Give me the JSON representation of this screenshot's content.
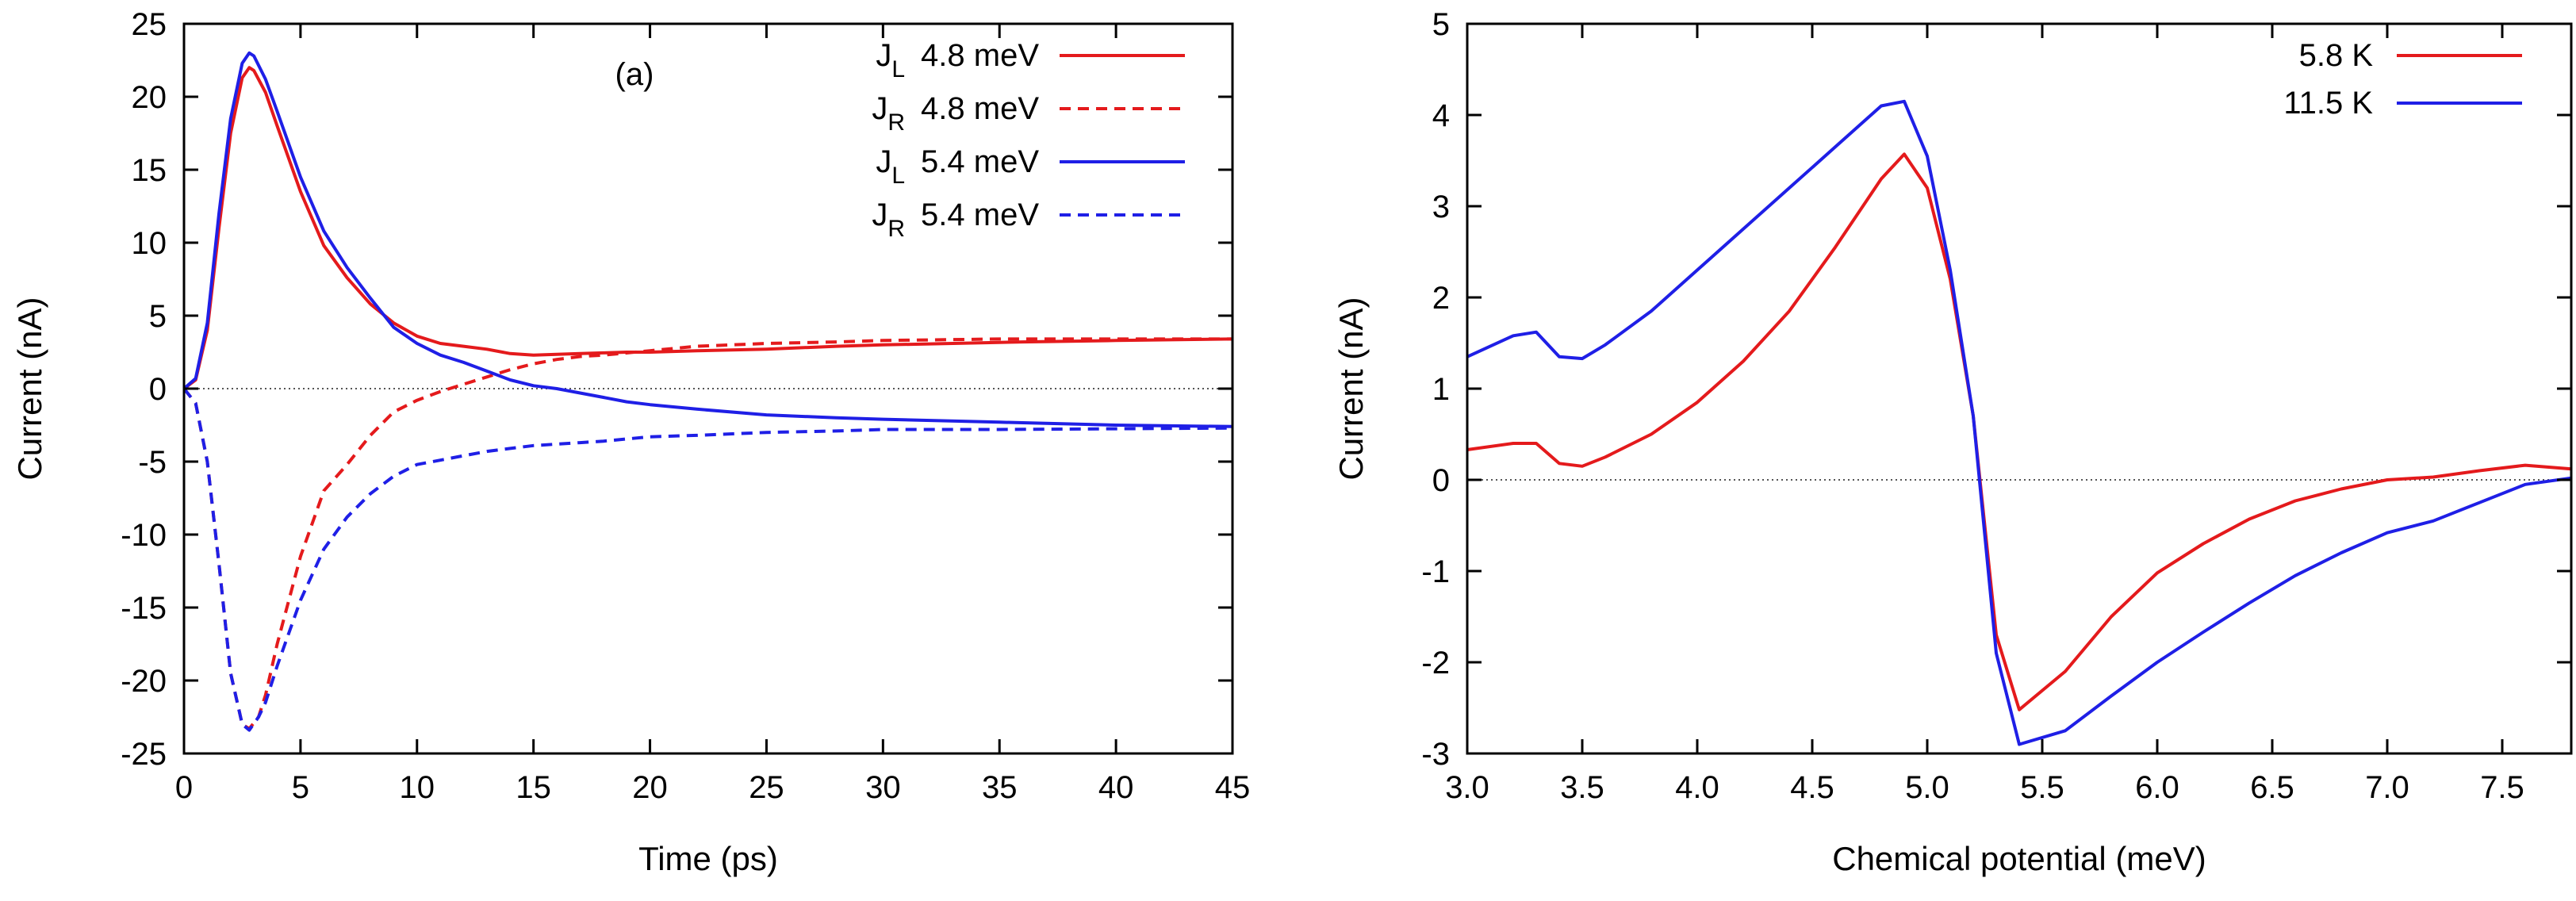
{
  "chart_data": [
    {
      "type": "line",
      "xlabel": "Time (ps)",
      "ylabel": "Current (nA)",
      "xlim": [
        0,
        45
      ],
      "ylim": [
        -25,
        25
      ],
      "xticks": [
        0,
        5,
        10,
        15,
        20,
        25,
        30,
        35,
        40,
        45
      ],
      "yticks": [
        -25,
        -20,
        -15,
        -10,
        -5,
        0,
        5,
        10,
        15,
        20,
        25
      ],
      "annotation": "(a)",
      "zero_line": true,
      "legend_position": "top-right",
      "series": [
        {
          "legend_main": "J",
          "legend_sub": "L",
          "legend_text": "4.8 meV",
          "color": "#e41a1c",
          "dash": "solid",
          "points": [
            [
              0,
              0
            ],
            [
              0.5,
              0.6
            ],
            [
              1,
              4
            ],
            [
              1.5,
              11
            ],
            [
              2,
              17.5
            ],
            [
              2.5,
              21.3
            ],
            [
              2.8,
              22
            ],
            [
              3,
              21.8
            ],
            [
              3.5,
              20.3
            ],
            [
              4,
              18
            ],
            [
              5,
              13.5
            ],
            [
              6,
              9.8
            ],
            [
              7,
              7.6
            ],
            [
              8,
              5.8
            ],
            [
              9,
              4.5
            ],
            [
              10,
              3.6
            ],
            [
              11,
              3.1
            ],
            [
              12,
              2.9
            ],
            [
              13,
              2.7
            ],
            [
              14,
              2.4
            ],
            [
              15,
              2.3
            ],
            [
              16,
              2.35
            ],
            [
              17,
              2.4
            ],
            [
              18,
              2.45
            ],
            [
              19,
              2.5
            ],
            [
              20,
              2.5
            ],
            [
              22,
              2.6
            ],
            [
              25,
              2.7
            ],
            [
              28,
              2.9
            ],
            [
              30,
              3.0
            ],
            [
              33,
              3.1
            ],
            [
              36,
              3.2
            ],
            [
              40,
              3.3
            ],
            [
              45,
              3.4
            ]
          ]
        },
        {
          "legend_main": "J",
          "legend_sub": "R",
          "legend_text": "4.8 meV",
          "color": "#e41a1c",
          "dash": "dashed",
          "points": [
            [
              0,
              0
            ],
            [
              0.5,
              -1
            ],
            [
              1,
              -5
            ],
            [
              1.5,
              -12
            ],
            [
              2,
              -19.5
            ],
            [
              2.5,
              -23
            ],
            [
              2.8,
              -23.3
            ],
            [
              3.2,
              -22.5
            ],
            [
              3.5,
              -21
            ],
            [
              4,
              -17.5
            ],
            [
              5,
              -11.5
            ],
            [
              6,
              -7
            ],
            [
              7,
              -5.2
            ],
            [
              8,
              -3.2
            ],
            [
              9,
              -1.6
            ],
            [
              10,
              -0.8
            ],
            [
              11,
              -0.2
            ],
            [
              12,
              0.3
            ],
            [
              13,
              0.8
            ],
            [
              14,
              1.3
            ],
            [
              15,
              1.7
            ],
            [
              16,
              2.0
            ],
            [
              17,
              2.2
            ],
            [
              18,
              2.3
            ],
            [
              20,
              2.6
            ],
            [
              22,
              2.9
            ],
            [
              25,
              3.1
            ],
            [
              28,
              3.2
            ],
            [
              30,
              3.3
            ],
            [
              35,
              3.4
            ],
            [
              40,
              3.4
            ],
            [
              45,
              3.4
            ]
          ]
        },
        {
          "legend_main": "J",
          "legend_sub": "L",
          "legend_text": "5.4 meV",
          "color": "#1f1fe6",
          "dash": "solid",
          "points": [
            [
              0,
              0
            ],
            [
              0.5,
              0.7
            ],
            [
              1,
              4.5
            ],
            [
              1.5,
              12
            ],
            [
              2,
              18.5
            ],
            [
              2.5,
              22.3
            ],
            [
              2.8,
              23
            ],
            [
              3,
              22.8
            ],
            [
              3.5,
              21.2
            ],
            [
              4,
              19
            ],
            [
              5,
              14.5
            ],
            [
              6,
              10.8
            ],
            [
              7,
              8.3
            ],
            [
              8,
              6.2
            ],
            [
              9,
              4.2
            ],
            [
              10,
              3.1
            ],
            [
              11,
              2.3
            ],
            [
              12,
              1.8
            ],
            [
              13,
              1.2
            ],
            [
              14,
              0.6
            ],
            [
              15,
              0.2
            ],
            [
              16,
              0
            ],
            [
              17,
              -0.3
            ],
            [
              18,
              -0.6
            ],
            [
              19,
              -0.9
            ],
            [
              20,
              -1.1
            ],
            [
              22,
              -1.4
            ],
            [
              25,
              -1.8
            ],
            [
              28,
              -2.0
            ],
            [
              30,
              -2.1
            ],
            [
              35,
              -2.3
            ],
            [
              40,
              -2.5
            ],
            [
              45,
              -2.6
            ]
          ]
        },
        {
          "legend_main": "J",
          "legend_sub": "R",
          "legend_text": "5.4 meV",
          "color": "#1f1fe6",
          "dash": "dashed",
          "points": [
            [
              0,
              0
            ],
            [
              0.5,
              -1
            ],
            [
              1,
              -5
            ],
            [
              1.5,
              -12
            ],
            [
              2,
              -19.5
            ],
            [
              2.5,
              -23
            ],
            [
              2.8,
              -23.4
            ],
            [
              3.2,
              -22.5
            ],
            [
              3.5,
              -21.5
            ],
            [
              4,
              -19
            ],
            [
              5,
              -14.5
            ],
            [
              6,
              -11
            ],
            [
              7,
              -8.8
            ],
            [
              8,
              -7.2
            ],
            [
              9,
              -6
            ],
            [
              10,
              -5.2
            ],
            [
              11,
              -4.9
            ],
            [
              12,
              -4.6
            ],
            [
              13,
              -4.3
            ],
            [
              14,
              -4.1
            ],
            [
              15,
              -3.9
            ],
            [
              17,
              -3.7
            ],
            [
              18,
              -3.6
            ],
            [
              20,
              -3.3
            ],
            [
              22,
              -3.2
            ],
            [
              25,
              -3.0
            ],
            [
              28,
              -2.9
            ],
            [
              30,
              -2.8
            ],
            [
              35,
              -2.8
            ],
            [
              40,
              -2.75
            ],
            [
              45,
              -2.7
            ]
          ]
        }
      ]
    },
    {
      "type": "line",
      "xlabel": "Chemical potential (meV)",
      "ylabel": "Current (nA)",
      "xlim": [
        3.0,
        7.8
      ],
      "ylim": [
        -3,
        5
      ],
      "xticks": [
        3.0,
        3.5,
        4.0,
        4.5,
        5.0,
        5.5,
        6.0,
        6.5,
        7.0,
        7.5
      ],
      "xtick_labels": [
        "3.0",
        "3.5",
        "4.0",
        "4.5",
        "5.0",
        "5.5",
        "6.0",
        "6.5",
        "7.0",
        "7.5"
      ],
      "yticks": [
        -3,
        -2,
        -1,
        0,
        1,
        2,
        3,
        4,
        5
      ],
      "zero_line": true,
      "legend_position": "top-right",
      "series": [
        {
          "name": "5.8 K",
          "color": "#e41a1c",
          "dash": "solid",
          "points": [
            [
              3.0,
              0.33
            ],
            [
              3.2,
              0.4
            ],
            [
              3.3,
              0.4
            ],
            [
              3.4,
              0.18
            ],
            [
              3.5,
              0.15
            ],
            [
              3.6,
              0.25
            ],
            [
              3.8,
              0.5
            ],
            [
              4.0,
              0.85
            ],
            [
              4.2,
              1.3
            ],
            [
              4.4,
              1.85
            ],
            [
              4.6,
              2.55
            ],
            [
              4.8,
              3.3
            ],
            [
              4.9,
              3.57
            ],
            [
              5.0,
              3.2
            ],
            [
              5.1,
              2.2
            ],
            [
              5.2,
              0.7
            ],
            [
              5.3,
              -1.7
            ],
            [
              5.4,
              -2.52
            ],
            [
              5.6,
              -2.1
            ],
            [
              5.8,
              -1.5
            ],
            [
              6.0,
              -1.02
            ],
            [
              6.2,
              -0.7
            ],
            [
              6.4,
              -0.43
            ],
            [
              6.6,
              -0.23
            ],
            [
              6.8,
              -0.1
            ],
            [
              7.0,
              0
            ],
            [
              7.2,
              0.03
            ],
            [
              7.4,
              0.1
            ],
            [
              7.6,
              0.16
            ],
            [
              7.8,
              0.12
            ]
          ]
        },
        {
          "name": "11.5 K",
          "color": "#1f1fe6",
          "dash": "solid",
          "points": [
            [
              3.0,
              1.35
            ],
            [
              3.2,
              1.58
            ],
            [
              3.3,
              1.62
            ],
            [
              3.4,
              1.35
            ],
            [
              3.5,
              1.33
            ],
            [
              3.6,
              1.48
            ],
            [
              3.8,
              1.85
            ],
            [
              4.0,
              2.3
            ],
            [
              4.2,
              2.75
            ],
            [
              4.4,
              3.2
            ],
            [
              4.6,
              3.65
            ],
            [
              4.8,
              4.1
            ],
            [
              4.9,
              4.15
            ],
            [
              5.0,
              3.55
            ],
            [
              5.1,
              2.3
            ],
            [
              5.2,
              0.7
            ],
            [
              5.3,
              -1.9
            ],
            [
              5.4,
              -2.9
            ],
            [
              5.6,
              -2.75
            ],
            [
              5.8,
              -2.37
            ],
            [
              6.0,
              -2.0
            ],
            [
              6.2,
              -1.67
            ],
            [
              6.4,
              -1.35
            ],
            [
              6.6,
              -1.05
            ],
            [
              6.8,
              -0.8
            ],
            [
              7.0,
              -0.58
            ],
            [
              7.2,
              -0.45
            ],
            [
              7.4,
              -0.25
            ],
            [
              7.6,
              -0.05
            ],
            [
              7.8,
              0.02
            ]
          ]
        }
      ]
    }
  ]
}
